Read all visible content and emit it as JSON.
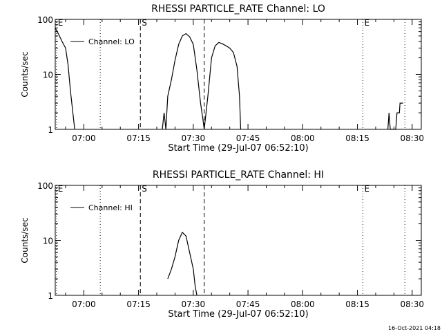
{
  "footer": {
    "timestamp": "16-Oct-2021 04:18"
  },
  "chart_data": [
    {
      "type": "line",
      "title": "RHESSI PARTICLE_RATE Channel: LO",
      "xlabel": "Start Time (29-Jul-07 06:52:10)",
      "ylabel": "Counts/sec",
      "ylog": true,
      "ylim": [
        1,
        100
      ],
      "yticks": [
        {
          "value": 1,
          "label": "1"
        },
        {
          "value": 10,
          "label": "10"
        },
        {
          "value": 100,
          "label": "100"
        }
      ],
      "xlim": [
        "06:52:10",
        "08:32:30"
      ],
      "xticks": [
        "07:00",
        "07:15",
        "07:30",
        "07:45",
        "08:00",
        "08:15",
        "08:30"
      ],
      "legend": {
        "label": "Channel: LO",
        "position": "top-left"
      },
      "vlines": [
        {
          "time": "06:52:30",
          "style": "dotted",
          "label": "E"
        },
        {
          "time": "07:04:30",
          "style": "dotted",
          "label": ""
        },
        {
          "time": "07:15:30",
          "style": "dashed",
          "label": "S"
        },
        {
          "time": "07:33:00",
          "style": "dashed",
          "label": ""
        },
        {
          "time": "08:16:30",
          "style": "dotted",
          "label": "E"
        },
        {
          "time": "08:28:00",
          "style": "dotted",
          "label": ""
        }
      ],
      "series": [
        {
          "points": [
            [
              "06:52:10",
              70
            ],
            [
              "06:53:00",
              55
            ],
            [
              "06:54:00",
              40
            ],
            [
              "06:55:00",
              30
            ],
            [
              "06:55:40",
              15
            ],
            [
              "06:56:20",
              5
            ],
            [
              "06:57:00",
              2
            ],
            [
              "06:57:30",
              1
            ]
          ]
        },
        {
          "points": [
            [
              "07:21:30",
              1
            ],
            [
              "07:22:00",
              2
            ],
            [
              "07:22:30",
              1
            ],
            [
              "07:23:00",
              4
            ],
            [
              "07:24:00",
              8
            ],
            [
              "07:25:00",
              18
            ],
            [
              "07:26:00",
              35
            ],
            [
              "07:27:00",
              50
            ],
            [
              "07:28:00",
              55
            ],
            [
              "07:29:00",
              48
            ],
            [
              "07:30:00",
              35
            ],
            [
              "07:31:00",
              12
            ],
            [
              "07:32:00",
              3
            ],
            [
              "07:32:40",
              1.5
            ],
            [
              "07:33:00",
              1
            ]
          ]
        },
        {
          "points": [
            [
              "07:33:00",
              1
            ],
            [
              "07:34:00",
              4
            ],
            [
              "07:35:00",
              20
            ],
            [
              "07:36:00",
              33
            ],
            [
              "07:37:00",
              38
            ],
            [
              "07:38:00",
              36
            ],
            [
              "07:39:00",
              33
            ],
            [
              "07:40:00",
              30
            ],
            [
              "07:41:00",
              25
            ],
            [
              "07:42:00",
              14
            ],
            [
              "07:42:40",
              4
            ],
            [
              "07:43:00",
              1
            ]
          ]
        },
        {
          "points": [
            [
              "08:23:20",
              1
            ],
            [
              "08:23:40",
              2
            ],
            [
              "08:24:00",
              1
            ],
            [
              "08:25:30",
              1
            ],
            [
              "08:25:50",
              2
            ],
            [
              "08:26:30",
              2
            ],
            [
              "08:26:40",
              3
            ],
            [
              "08:27:30",
              3
            ]
          ]
        }
      ]
    },
    {
      "type": "line",
      "title": "RHESSI PARTICLE_RATE Channel: HI",
      "xlabel": "Start Time (29-Jul-07 06:52:10)",
      "ylabel": "Counts/sec",
      "ylog": true,
      "ylim": [
        1,
        100
      ],
      "yticks": [
        {
          "value": 1,
          "label": "1"
        },
        {
          "value": 10,
          "label": "10"
        },
        {
          "value": 100,
          "label": "100"
        }
      ],
      "xlim": [
        "06:52:10",
        "08:32:30"
      ],
      "xticks": [
        "07:00",
        "07:15",
        "07:30",
        "07:45",
        "08:00",
        "08:15",
        "08:30"
      ],
      "legend": {
        "label": "Channel: HI",
        "position": "top-left"
      },
      "vlines": [
        {
          "time": "06:52:30",
          "style": "dotted",
          "label": "E"
        },
        {
          "time": "07:04:30",
          "style": "dotted",
          "label": ""
        },
        {
          "time": "07:15:30",
          "style": "dashed",
          "label": "S"
        },
        {
          "time": "07:33:00",
          "style": "dashed",
          "label": ""
        },
        {
          "time": "08:16:30",
          "style": "dotted",
          "label": "E"
        },
        {
          "time": "08:28:00",
          "style": "dotted",
          "label": ""
        }
      ],
      "series": [
        {
          "points": [
            [
              "07:23:00",
              2
            ],
            [
              "07:24:00",
              3
            ],
            [
              "07:25:00",
              5
            ],
            [
              "07:26:00",
              10
            ],
            [
              "07:27:00",
              14
            ],
            [
              "07:28:00",
              12
            ],
            [
              "07:29:00",
              6
            ],
            [
              "07:30:00",
              3
            ],
            [
              "07:30:30",
              1.5
            ],
            [
              "07:31:00",
              1
            ]
          ]
        }
      ]
    }
  ]
}
